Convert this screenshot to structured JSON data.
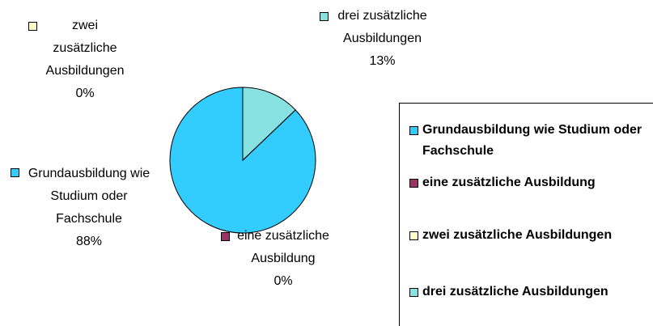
{
  "chart_data": {
    "type": "pie",
    "categories": [
      "Grundausbildung wie Studium oder Fachschule",
      "eine zusätzliche Ausbildung",
      "zwei zusätzliche Ausbildungen",
      "drei zusätzliche Ausbildungen"
    ],
    "values": [
      88,
      0,
      0,
      13
    ],
    "value_labels": [
      "88%",
      "0%",
      "0%",
      "13%"
    ],
    "colors": [
      "#33CCFF",
      "#993366",
      "#FFFFCC",
      "#88E2E2"
    ],
    "legend": "right"
  }
}
